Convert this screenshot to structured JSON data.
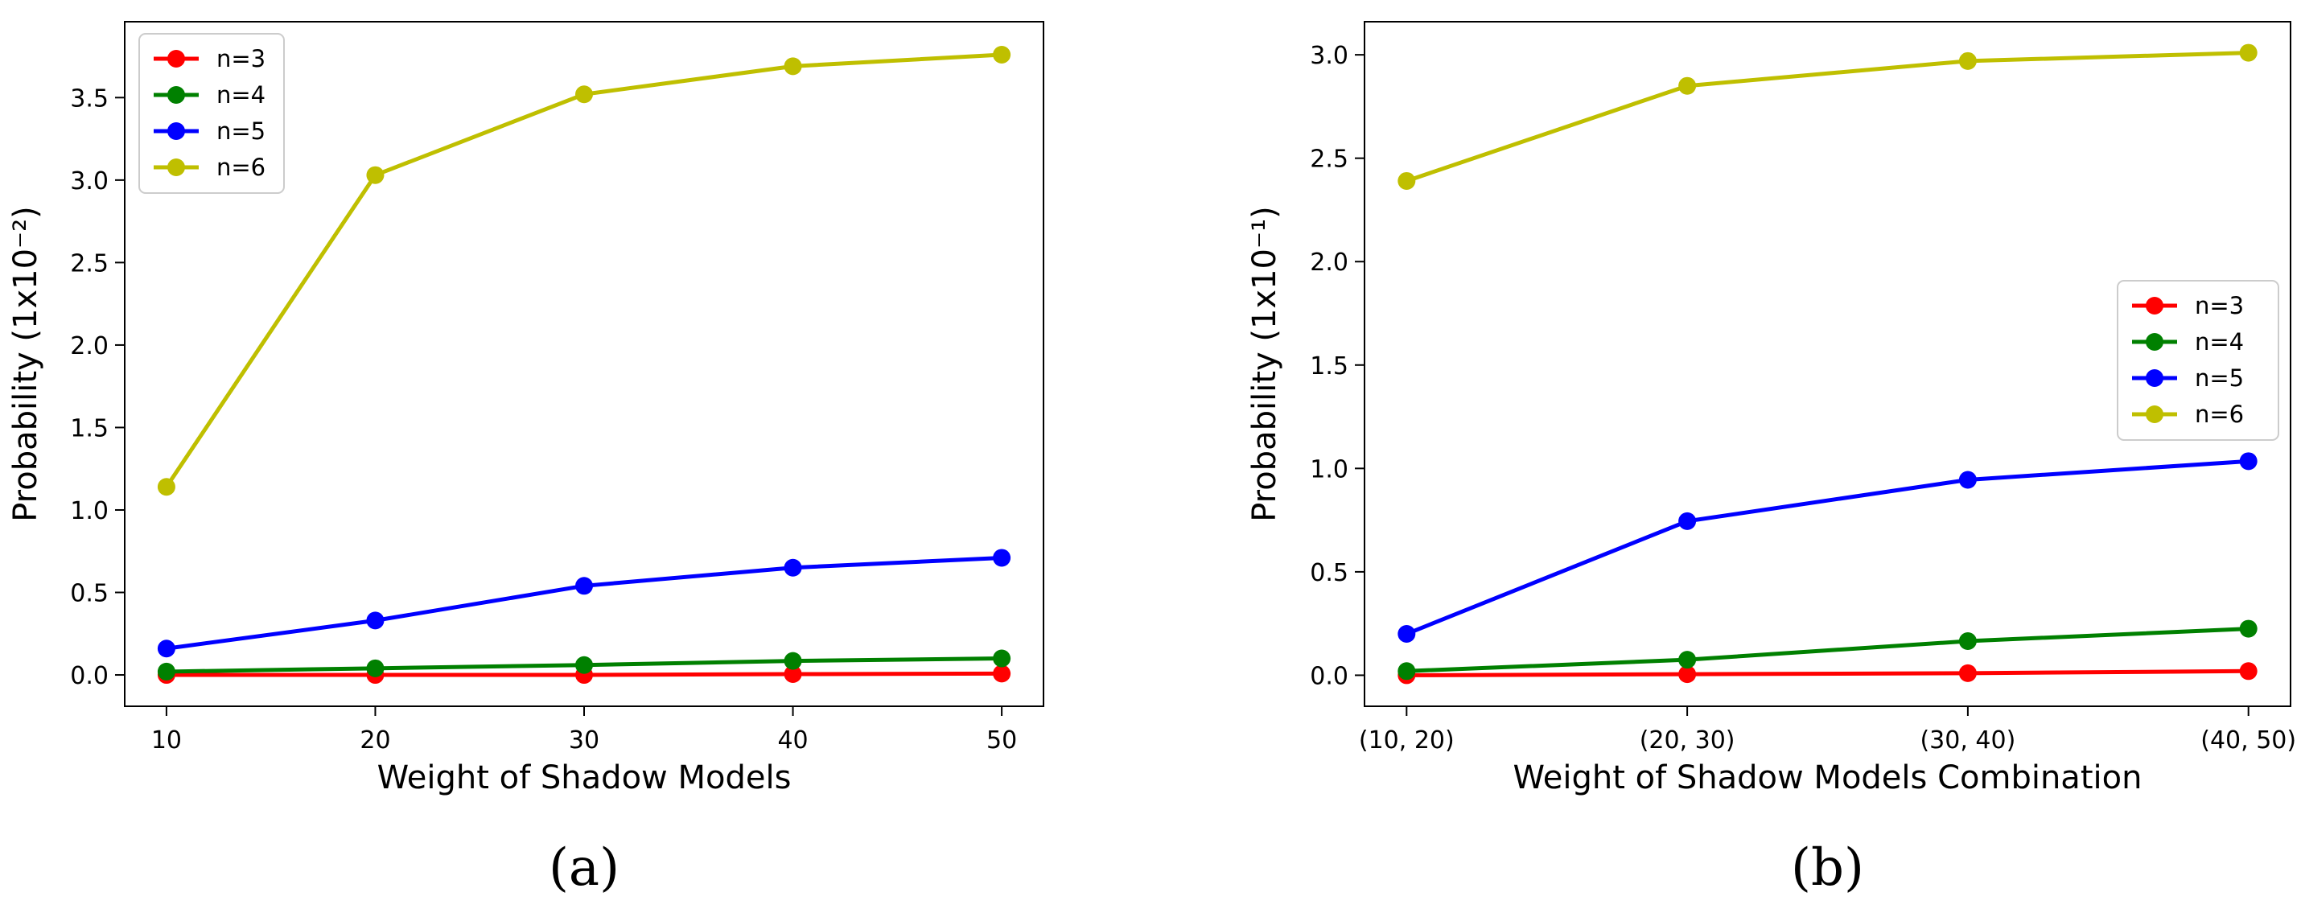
{
  "chart_data": [
    {
      "type": "line",
      "panel_label": "(a)",
      "title": "",
      "xlabel": "Weight of Shadow Models",
      "ylabel": "Probability (1x10⁻²)",
      "x": [
        10,
        20,
        30,
        40,
        50
      ],
      "x_tick_labels": [
        "10",
        "20",
        "30",
        "40",
        "50"
      ],
      "xlim": [
        8,
        52
      ],
      "ylim": [
        -0.19,
        3.96
      ],
      "y_ticks": [
        0.0,
        0.5,
        1.0,
        1.5,
        2.0,
        2.5,
        3.0,
        3.5
      ],
      "y_tick_labels": [
        "0.0",
        "0.5",
        "1.0",
        "1.5",
        "2.0",
        "2.5",
        "3.0",
        "3.5"
      ],
      "grid": false,
      "legend_position": "top-left",
      "series": [
        {
          "name": "n=3",
          "color": "#ff0000",
          "values": [
            0.0,
            0.0,
            0.0,
            0.005,
            0.008
          ]
        },
        {
          "name": "n=4",
          "color": "#008000",
          "values": [
            0.02,
            0.04,
            0.06,
            0.085,
            0.1
          ]
        },
        {
          "name": "n=5",
          "color": "#0000ff",
          "values": [
            0.16,
            0.33,
            0.54,
            0.65,
            0.71
          ]
        },
        {
          "name": "n=6",
          "color": "#bfbf00",
          "values": [
            1.14,
            3.03,
            3.52,
            3.69,
            3.76
          ]
        }
      ]
    },
    {
      "type": "line",
      "panel_label": "(b)",
      "title": "",
      "xlabel": "Weight of Shadow Models Combination",
      "ylabel": "Probability (1x10⁻¹)",
      "x": [
        0,
        1,
        2,
        3
      ],
      "x_tick_labels": [
        "(10, 20)",
        "(20, 30)",
        "(30, 40)",
        "(40, 50)"
      ],
      "xlim": [
        -0.15,
        3.15
      ],
      "ylim": [
        -0.15,
        3.16
      ],
      "y_ticks": [
        0.0,
        0.5,
        1.0,
        1.5,
        2.0,
        2.5,
        3.0
      ],
      "y_tick_labels": [
        "0.0",
        "0.5",
        "1.0",
        "1.5",
        "2.0",
        "2.5",
        "3.0"
      ],
      "grid": false,
      "legend_position": "center-right",
      "series": [
        {
          "name": "n=3",
          "color": "#ff0000",
          "values": [
            0.0,
            0.005,
            0.01,
            0.02
          ]
        },
        {
          "name": "n=4",
          "color": "#008000",
          "values": [
            0.02,
            0.075,
            0.165,
            0.225
          ]
        },
        {
          "name": "n=5",
          "color": "#0000ff",
          "values": [
            0.2,
            0.745,
            0.945,
            1.035
          ]
        },
        {
          "name": "n=6",
          "color": "#bfbf00",
          "values": [
            2.39,
            2.85,
            2.97,
            3.01
          ]
        }
      ]
    }
  ]
}
